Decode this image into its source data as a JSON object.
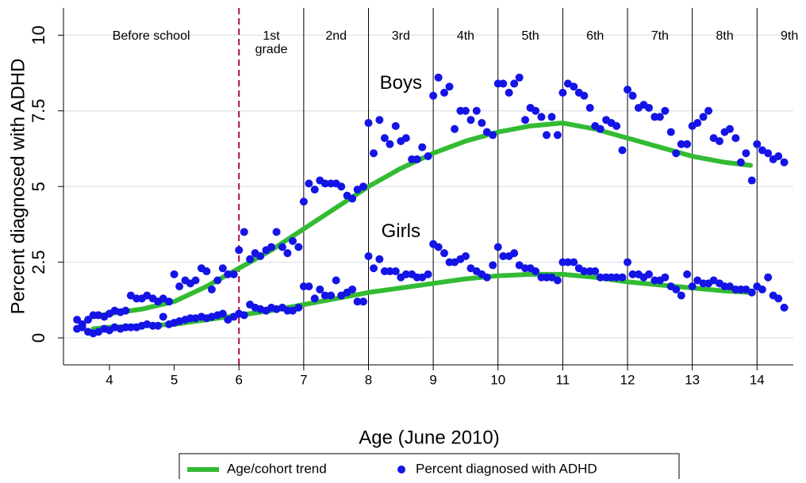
{
  "chart_data": {
    "type": "scatter",
    "x_label": "Age (June 2010)",
    "y_label": "Percent diagnosed with ADHD",
    "xlim": [
      3.29,
      14.56
    ],
    "ylim": [
      -0.89,
      10.9
    ],
    "xticks": [
      4,
      5,
      6,
      7,
      8,
      9,
      10,
      11,
      12,
      13,
      14
    ],
    "yticks": [
      0,
      2.5,
      5,
      7.5,
      10
    ],
    "grid": true,
    "school_start": 6,
    "school_start_color": "#b0103a",
    "grade_boundaries": [
      7,
      8,
      9,
      10,
      11,
      12,
      13,
      14
    ],
    "grade_labels": [
      "Before school",
      "1st grade",
      "2nd",
      "3rd",
      "4th",
      "5th",
      "6th",
      "7th",
      "8th",
      "9th"
    ],
    "group_labels": [
      "Boys",
      "Girls"
    ],
    "legend": "bottom",
    "series": [
      {
        "name": "Age/cohort trend",
        "type": "line",
        "color": "#33bb33",
        "x": [
          3.75,
          4,
          4.5,
          5,
          5.5,
          6,
          6.5,
          7,
          7.5,
          8,
          8.5,
          9,
          9.5,
          10,
          10.5,
          11,
          11.5,
          12,
          12.5,
          13,
          13.5,
          13.9
        ],
        "groups": [
          {
            "values": [
              0.7,
              0.8,
              0.95,
              1.2,
              1.7,
              2.3,
              2.9,
              3.6,
              4.3,
              5.0,
              5.6,
              6.1,
              6.5,
              6.8,
              7.0,
              7.1,
              6.9,
              6.6,
              6.3,
              6.0,
              5.8,
              5.7
            ]
          },
          {
            "values": [
              0.3,
              0.35,
              0.4,
              0.45,
              0.6,
              0.75,
              0.9,
              1.1,
              1.3,
              1.5,
              1.65,
              1.8,
              1.95,
              2.05,
              2.1,
              2.1,
              2.0,
              1.85,
              1.75,
              1.65,
              1.55,
              1.5
            ]
          }
        ]
      },
      {
        "name": "Percent diagnosed with ADHD",
        "type": "scatter",
        "color": "#1414e6",
        "x": [
          3.5,
          3.58,
          3.67,
          3.75,
          3.83,
          3.92,
          4,
          4.08,
          4.17,
          4.25,
          4.33,
          4.42,
          4.5,
          4.58,
          4.67,
          4.75,
          4.83,
          4.92,
          5,
          5.08,
          5.17,
          5.25,
          5.33,
          5.42,
          5.5,
          5.58,
          5.67,
          5.75,
          5.83,
          5.92,
          6,
          6.08,
          6.17,
          6.25,
          6.33,
          6.42,
          6.5,
          6.58,
          6.67,
          6.75,
          6.83,
          6.92,
          7,
          7.08,
          7.17,
          7.25,
          7.33,
          7.42,
          7.5,
          7.58,
          7.67,
          7.75,
          7.83,
          7.92,
          8,
          8.08,
          8.17,
          8.25,
          8.33,
          8.42,
          8.5,
          8.58,
          8.67,
          8.75,
          8.83,
          8.92,
          9,
          9.08,
          9.17,
          9.25,
          9.33,
          9.42,
          9.5,
          9.58,
          9.67,
          9.75,
          9.83,
          9.92,
          10,
          10.08,
          10.17,
          10.25,
          10.33,
          10.42,
          10.5,
          10.58,
          10.67,
          10.75,
          10.83,
          10.92,
          11,
          11.08,
          11.17,
          11.25,
          11.33,
          11.42,
          11.5,
          11.58,
          11.67,
          11.75,
          11.83,
          11.92,
          12,
          12.08,
          12.17,
          12.25,
          12.33,
          12.42,
          12.5,
          12.58,
          12.67,
          12.75,
          12.83,
          12.92,
          13,
          13.08,
          13.17,
          13.25,
          13.33,
          13.42,
          13.5,
          13.58,
          13.67,
          13.75,
          13.83,
          13.92,
          14,
          14.08,
          14.17,
          14.25,
          14.33,
          14.42
        ],
        "groups": [
          {
            "values": [
              0.6,
              0.45,
              0.6,
              0.75,
              0.75,
              0.7,
              0.8,
              0.9,
              0.85,
              0.9,
              1.4,
              1.3,
              1.3,
              1.4,
              1.3,
              1.2,
              1.3,
              1.2,
              2.1,
              1.7,
              1.9,
              1.8,
              1.9,
              2.3,
              2.2,
              1.6,
              1.9,
              2.3,
              2.1,
              2.1,
              2.9,
              3.5,
              2.6,
              2.8,
              2.7,
              2.9,
              3.0,
              3.5,
              3.0,
              2.8,
              3.2,
              3.0,
              4.5,
              5.1,
              4.9,
              5.2,
              5.1,
              5.1,
              5.1,
              5.0,
              4.7,
              4.6,
              4.9,
              5.0,
              7.1,
              6.1,
              7.2,
              6.6,
              6.4,
              7.0,
              6.5,
              6.6,
              5.9,
              5.9,
              6.3,
              6.0,
              8.0,
              8.6,
              8.1,
              8.3,
              6.9,
              7.5,
              7.5,
              7.2,
              7.5,
              7.1,
              6.8,
              6.7,
              8.4,
              8.4,
              8.1,
              8.4,
              8.6,
              7.2,
              7.6,
              7.5,
              7.3,
              6.7,
              7.3,
              6.7,
              8.1,
              8.4,
              8.3,
              8.1,
              8.0,
              7.6,
              7.0,
              6.9,
              7.2,
              7.1,
              7.0,
              6.2,
              8.2,
              8.0,
              7.6,
              7.7,
              7.6,
              7.3,
              7.3,
              7.5,
              6.8,
              6.1,
              6.4,
              6.4,
              7.0,
              7.1,
              7.3,
              7.5,
              6.6,
              6.5,
              6.8,
              6.9,
              6.6,
              5.8,
              6.1,
              5.2,
              6.4,
              6.2,
              6.1,
              5.9,
              6.0,
              5.8
            ]
          },
          {
            "values": [
              0.3,
              0.35,
              0.2,
              0.15,
              0.2,
              0.3,
              0.25,
              0.35,
              0.3,
              0.35,
              0.35,
              0.35,
              0.4,
              0.45,
              0.4,
              0.4,
              0.7,
              0.45,
              0.5,
              0.55,
              0.6,
              0.65,
              0.65,
              0.7,
              0.65,
              0.7,
              0.75,
              0.8,
              0.6,
              0.7,
              0.8,
              0.75,
              1.1,
              1.0,
              0.95,
              0.9,
              1.0,
              0.95,
              1.0,
              0.9,
              0.9,
              1.0,
              1.7,
              1.7,
              1.3,
              1.6,
              1.4,
              1.4,
              1.9,
              1.4,
              1.5,
              1.6,
              1.2,
              1.2,
              2.7,
              2.3,
              2.6,
              2.2,
              2.2,
              2.2,
              2.0,
              2.1,
              2.1,
              2.0,
              2.0,
              2.1,
              3.1,
              3.0,
              2.8,
              2.5,
              2.5,
              2.6,
              2.7,
              2.3,
              2.2,
              2.1,
              2.0,
              2.4,
              3.0,
              2.7,
              2.7,
              2.8,
              2.4,
              2.3,
              2.3,
              2.2,
              2.0,
              2.0,
              2.0,
              1.9,
              2.5,
              2.5,
              2.5,
              2.3,
              2.2,
              2.2,
              2.2,
              2.0,
              2.0,
              2.0,
              2.0,
              2.0,
              2.5,
              2.1,
              2.1,
              2.0,
              2.1,
              1.9,
              1.9,
              2.0,
              1.7,
              1.6,
              1.4,
              2.1,
              1.7,
              1.9,
              1.8,
              1.8,
              1.9,
              1.8,
              1.7,
              1.7,
              1.6,
              1.6,
              1.6,
              1.5,
              1.7,
              1.6,
              2.0,
              1.4,
              1.3,
              1.0
            ]
          }
        ]
      }
    ]
  }
}
